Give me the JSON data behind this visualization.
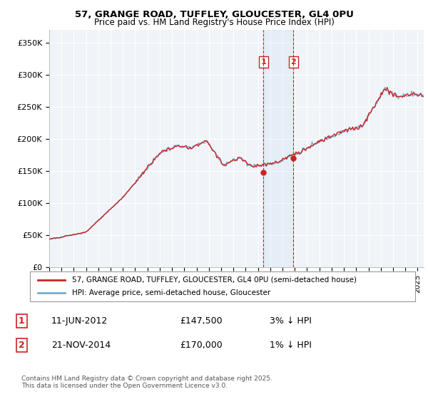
{
  "title_line1": "57, GRANGE ROAD, TUFFLEY, GLOUCESTER, GL4 0PU",
  "title_line2": "Price paid vs. HM Land Registry's House Price Index (HPI)",
  "ylabel_ticks": [
    "£0",
    "£50K",
    "£100K",
    "£150K",
    "£200K",
    "£250K",
    "£300K",
    "£350K"
  ],
  "ytick_values": [
    0,
    50000,
    100000,
    150000,
    200000,
    250000,
    300000,
    350000
  ],
  "ylim": [
    0,
    370000
  ],
  "xlim_start": 1995.0,
  "xlim_end": 2025.5,
  "hpi_color": "#7aadd4",
  "price_color": "#cc2222",
  "background_color": "#f0f4f8",
  "legend_text_1": "57, GRANGE ROAD, TUFFLEY, GLOUCESTER, GL4 0PU (semi-detached house)",
  "legend_text_2": "HPI: Average price, semi-detached house, Gloucester",
  "transaction_1_date": 2012.44,
  "transaction_1_price": 147500,
  "transaction_1_label": "1",
  "transaction_2_date": 2014.89,
  "transaction_2_price": 170000,
  "transaction_2_label": "2",
  "footer_text": "Contains HM Land Registry data © Crown copyright and database right 2025.\nThis data is licensed under the Open Government Licence v3.0.",
  "table_row1": [
    "1",
    "11-JUN-2012",
    "£147,500",
    "3% ↓ HPI"
  ],
  "table_row2": [
    "2",
    "21-NOV-2014",
    "£170,000",
    "1% ↓ HPI"
  ],
  "xtick_years": [
    1995,
    1996,
    1997,
    1998,
    1999,
    2000,
    2001,
    2002,
    2003,
    2004,
    2005,
    2006,
    2007,
    2008,
    2009,
    2010,
    2011,
    2012,
    2013,
    2014,
    2015,
    2016,
    2017,
    2018,
    2019,
    2020,
    2021,
    2022,
    2023,
    2024,
    2025
  ]
}
